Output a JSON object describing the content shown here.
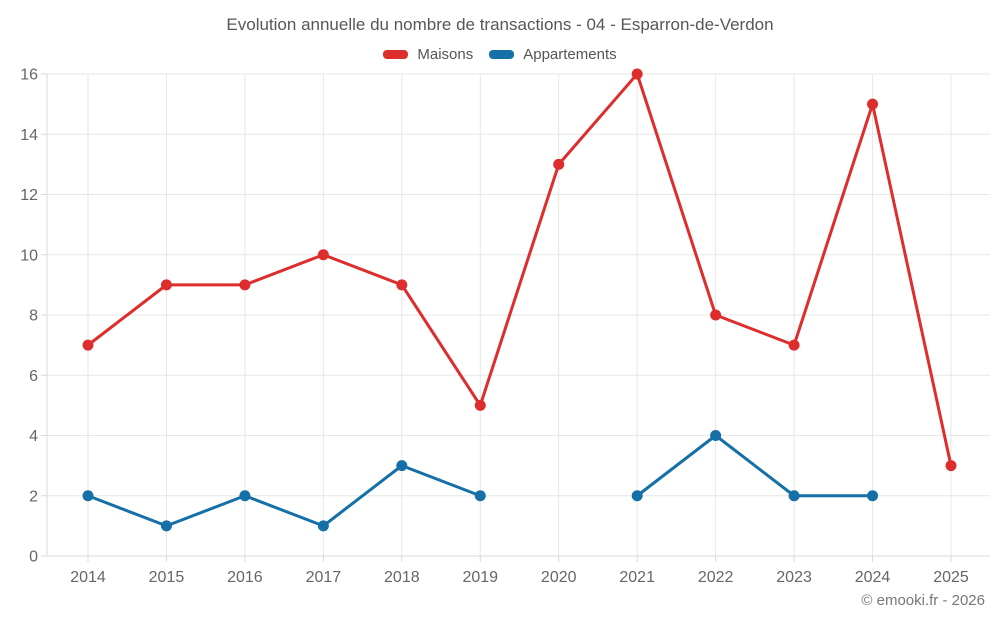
{
  "page": {
    "title": "Evolution annuelle du nombre de transactions - 04 - Esparron-de-Verdon",
    "footer": "© emooki.fr - 2026"
  },
  "legend": {
    "items": [
      {
        "label": "Maisons",
        "color": "#dd2d2d"
      },
      {
        "label": "Appartements",
        "color": "#1470a6"
      }
    ]
  },
  "chart_data": {
    "type": "line",
    "title": "Evolution annuelle du nombre de transactions - 04 - Esparron-de-Verdon",
    "categories": [
      "2014",
      "2015",
      "2016",
      "2017",
      "2018",
      "2019",
      "2020",
      "2021",
      "2022",
      "2023",
      "2024",
      "2025"
    ],
    "series": [
      {
        "name": "Maisons",
        "color": "#dd2d2d",
        "values": [
          7,
          9,
          9,
          10,
          9,
          5,
          13,
          16,
          8,
          7,
          15,
          3
        ]
      },
      {
        "name": "Appartements",
        "color": "#1470a6",
        "values": [
          2,
          1,
          2,
          1,
          3,
          2,
          null,
          2,
          4,
          2,
          2,
          null
        ]
      }
    ],
    "xlabel": "",
    "ylabel": "",
    "ylim": [
      0,
      16
    ],
    "ytick_step": 2,
    "yticks": [
      0,
      2,
      4,
      6,
      8,
      10,
      12,
      14,
      16
    ],
    "grid": true,
    "legend_position": "top",
    "colors": {
      "gridline": "#e7e7e7",
      "axis_border": "#d9d9d9",
      "tick_label": "#666666"
    }
  }
}
